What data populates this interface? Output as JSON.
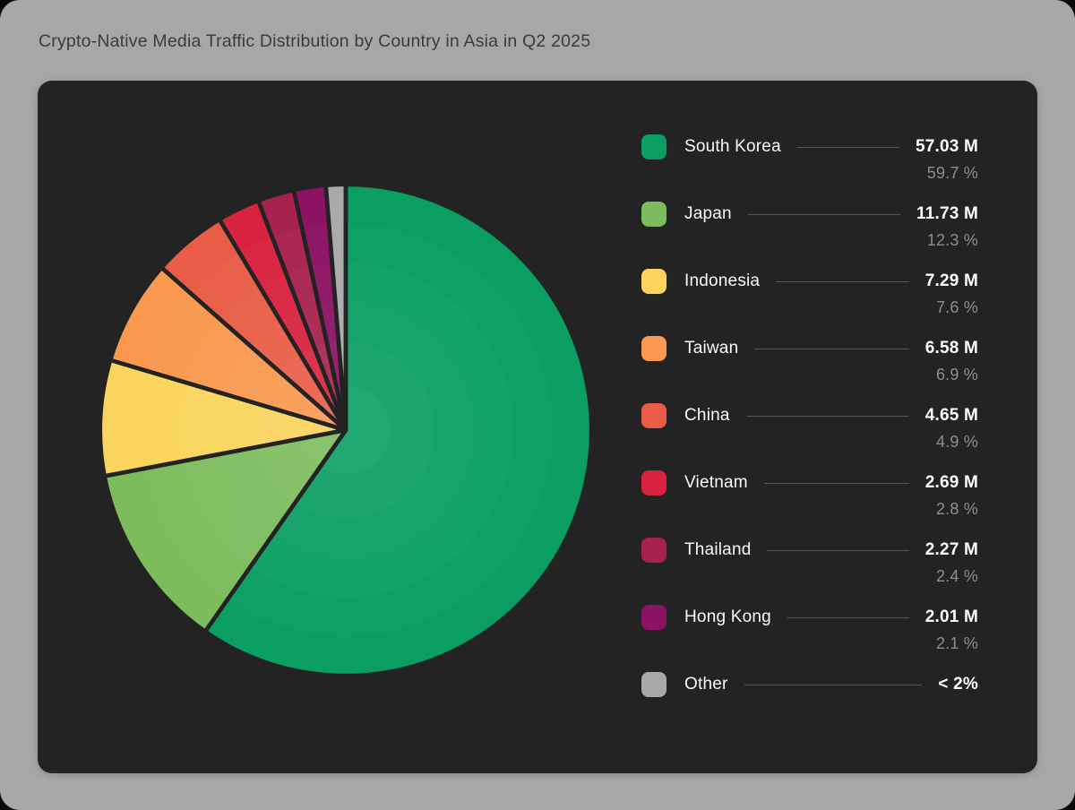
{
  "page": {
    "background_color": "#a7a7a7",
    "card_background_color": "#232323"
  },
  "chart_data": {
    "type": "pie",
    "title": "Crypto-Native Media Traffic Distribution by Country in Asia in Q2 2025",
    "unit": "millions of visits",
    "start_angle_deg": 0,
    "direction": "clockwise",
    "legend_position": "right",
    "slices": [
      {
        "label": "South Korea",
        "value_millions": 57.03,
        "value_label": "57.03 M",
        "percent": 59.7,
        "percent_label": "59.7 %",
        "color": "#0a9e62"
      },
      {
        "label": "Japan",
        "value_millions": 11.73,
        "value_label": "11.73 M",
        "percent": 12.3,
        "percent_label": "12.3 %",
        "color": "#7dbc5d"
      },
      {
        "label": "Indonesia",
        "value_millions": 7.29,
        "value_label": "7.29 M",
        "percent": 7.6,
        "percent_label": "7.6 %",
        "color": "#fad45c"
      },
      {
        "label": "Taiwan",
        "value_millions": 6.58,
        "value_label": "6.58 M",
        "percent": 6.9,
        "percent_label": "6.9 %",
        "color": "#f9984f"
      },
      {
        "label": "China",
        "value_millions": 4.65,
        "value_label": "4.65 M",
        "percent": 4.9,
        "percent_label": "4.9 %",
        "color": "#e95d47"
      },
      {
        "label": "Vietnam",
        "value_millions": 2.69,
        "value_label": "2.69 M",
        "percent": 2.8,
        "percent_label": "2.8 %",
        "color": "#d82340"
      },
      {
        "label": "Thailand",
        "value_millions": 2.27,
        "value_label": "2.27 M",
        "percent": 2.4,
        "percent_label": "2.4 %",
        "color": "#a7234e"
      },
      {
        "label": "Hong Kong",
        "value_millions": 2.01,
        "value_label": "2.01 M",
        "percent": 2.1,
        "percent_label": "2.1 %",
        "color": "#8c1264"
      },
      {
        "label": "Other",
        "value_millions": null,
        "value_label": "< 2%",
        "percent": 1.3,
        "percent_label": null,
        "color": "#a9a9a9"
      }
    ]
  }
}
